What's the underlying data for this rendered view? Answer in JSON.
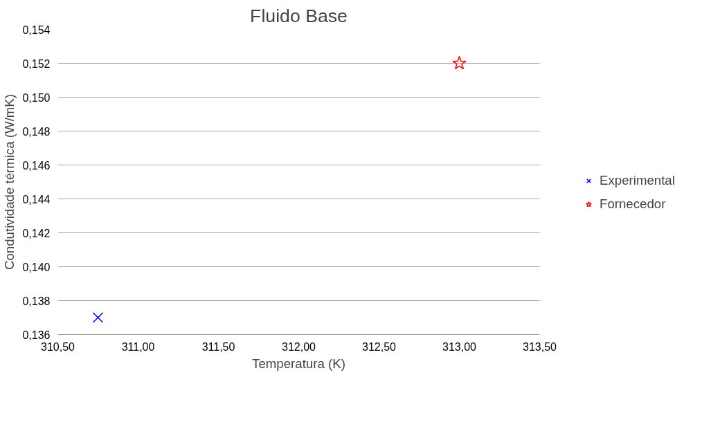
{
  "chart_data": {
    "type": "scatter",
    "title": "Fluido Base",
    "xlabel": "Temperatura (K)",
    "ylabel": "Condutividade térmica (W/mK)",
    "series": [
      {
        "name": "Experimental",
        "color": "#0000ff",
        "marker": "cross",
        "x": [
          310.75
        ],
        "values": [
          0.137
        ]
      },
      {
        "name": "Fornecedor",
        "color": "#ff0000",
        "marker": "star",
        "x": [
          313.0
        ],
        "values": [
          0.152
        ]
      }
    ],
    "xlim": [
      310.5,
      313.5
    ],
    "xticks": [
      {
        "value": 310.5,
        "label": "310,50"
      },
      {
        "value": 311.0,
        "label": "311,00"
      },
      {
        "value": 311.5,
        "label": "311,50"
      },
      {
        "value": 312.0,
        "label": "312,00"
      },
      {
        "value": 312.5,
        "label": "312,50"
      },
      {
        "value": 313.0,
        "label": "313,00"
      },
      {
        "value": 313.5,
        "label": "313,50"
      }
    ],
    "ylim": [
      0.136,
      0.154
    ],
    "yticks": [
      {
        "value": 0.136,
        "label": "0,136"
      },
      {
        "value": 0.138,
        "label": "0,138"
      },
      {
        "value": 0.14,
        "label": "0,140"
      },
      {
        "value": 0.142,
        "label": "0,142"
      },
      {
        "value": 0.144,
        "label": "0,144"
      },
      {
        "value": 0.146,
        "label": "0,146"
      },
      {
        "value": 0.148,
        "label": "0,148"
      },
      {
        "value": 0.15,
        "label": "0,150"
      },
      {
        "value": 0.152,
        "label": "0,152"
      },
      {
        "value": 0.154,
        "label": "0,154"
      }
    ],
    "grid": "y",
    "legend": "right"
  }
}
